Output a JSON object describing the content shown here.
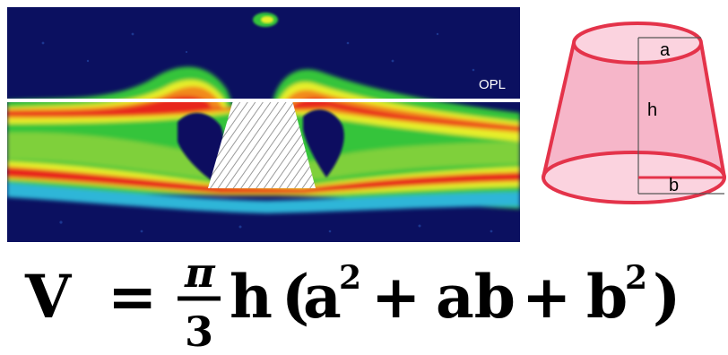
{
  "scan": {
    "layer_label": "OPL",
    "colors": {
      "background": "#0b1060",
      "red": "#e8251c",
      "orange": "#f28a1e",
      "yellow": "#e7ef2a",
      "green": "#35c43a",
      "cyan": "#2fb6d8",
      "line": "#ffffff"
    }
  },
  "frustum": {
    "labels": {
      "top_radius": "a",
      "height": "h",
      "bottom_radius": "b"
    },
    "colors": {
      "edge": "#e4334a",
      "fill": "#f4a9c0",
      "fill_light": "#fbd3df",
      "guide": "#555555"
    }
  },
  "formula": {
    "lhs": "V",
    "equals": "=",
    "numerator": "π",
    "denominator": "3",
    "height_var": "h",
    "open_paren": "(",
    "term1": "a",
    "exp1": "2",
    "plus1": "+",
    "term2": "ab",
    "plus2": "+",
    "term3": "b",
    "exp2": "2",
    "close_paren": ")"
  }
}
